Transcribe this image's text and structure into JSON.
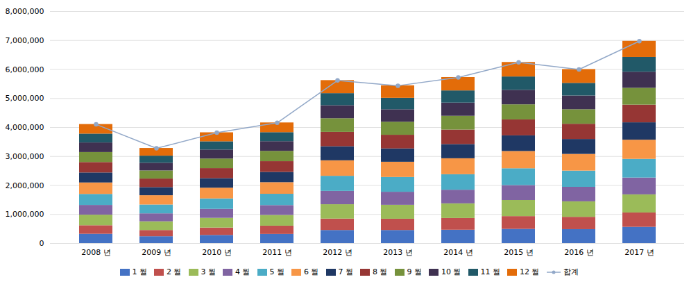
{
  "chart_data": {
    "type": "bar",
    "stacked": true,
    "grid": true,
    "legend": "bottom",
    "categories": [
      "2008 년",
      "2009 년",
      "2010 년",
      "2011 년",
      "2012 년",
      "2013 년",
      "2014 년",
      "2015 년",
      "2016 년",
      "2017 년"
    ],
    "ylim": [
      0,
      8000000
    ],
    "yticks": [
      0,
      {
        "value": 1000000,
        "label": "1,000,000"
      },
      {
        "value": 2000000,
        "label": "2,000,000"
      },
      {
        "value": 3000000,
        "label": "3,000,000"
      },
      {
        "value": 4000000,
        "label": "4,000,000"
      },
      {
        "value": 5000000,
        "label": "5,000,000"
      },
      {
        "value": 6000000,
        "label": "6,000,000"
      },
      {
        "value": 7000000,
        "label": "7,000,000"
      },
      {
        "value": 8000000,
        "label": "8,000,000"
      }
    ],
    "series": [
      {
        "name": "1 월",
        "color": "#4472c4",
        "values": [
          320000,
          235000,
          280000,
          315000,
          450000,
          450000,
          460000,
          490000,
          480000,
          560000
        ]
      },
      {
        "name": "2 월",
        "color": "#c0504d",
        "values": [
          295000,
          215000,
          255000,
          285000,
          395000,
          390000,
          405000,
          440000,
          425000,
          495000
        ]
      },
      {
        "name": "3 월",
        "color": "#9bbb59",
        "values": [
          365000,
          300000,
          335000,
          370000,
          495000,
          480000,
          505000,
          555000,
          535000,
          625000
        ]
      },
      {
        "name": "4 월",
        "color": "#8064a2",
        "values": [
          335000,
          275000,
          310000,
          340000,
          460000,
          450000,
          470000,
          515000,
          500000,
          580000
        ]
      },
      {
        "name": "5 월",
        "color": "#4bacc6",
        "values": [
          380000,
          305000,
          360000,
          390000,
          520000,
          510000,
          535000,
          580000,
          560000,
          645000
        ]
      },
      {
        "name": "6 월",
        "color": "#f79646",
        "values": [
          395000,
          320000,
          370000,
          400000,
          535000,
          525000,
          550000,
          595000,
          575000,
          660000
        ]
      },
      {
        "name": "7 월",
        "color": "#1f3864",
        "values": [
          345000,
          280000,
          330000,
          355000,
          485000,
          460000,
          490000,
          540000,
          515000,
          600000
        ]
      },
      {
        "name": "8 월",
        "color": "#963634",
        "values": [
          360000,
          295000,
          345000,
          370000,
          495000,
          470000,
          500000,
          550000,
          525000,
          610000
        ]
      },
      {
        "name": "9 월",
        "color": "#76923c",
        "values": [
          345000,
          280000,
          330000,
          355000,
          470000,
          450000,
          475000,
          520000,
          500000,
          580000
        ]
      },
      {
        "name": "10 월",
        "color": "#3f3151",
        "values": [
          330000,
          265000,
          310000,
          335000,
          450000,
          430000,
          455000,
          500000,
          475000,
          555000
        ]
      },
      {
        "name": "11 월",
        "color": "#215968",
        "values": [
          305000,
          245000,
          285000,
          310000,
          415000,
          395000,
          420000,
          460000,
          435000,
          510000
        ]
      },
      {
        "name": "12 월",
        "color": "#e36c09",
        "values": [
          330000,
          265000,
          310000,
          335000,
          450000,
          430000,
          460000,
          500000,
          475000,
          555000
        ]
      },
      {
        "name": "합계",
        "type": "line",
        "color": "#92a8c8",
        "marker": "circle",
        "values": [
          4105000,
          3280000,
          3820000,
          4160000,
          5620000,
          5440000,
          5725000,
          6245000,
          6000000,
          6975000
        ]
      }
    ]
  }
}
